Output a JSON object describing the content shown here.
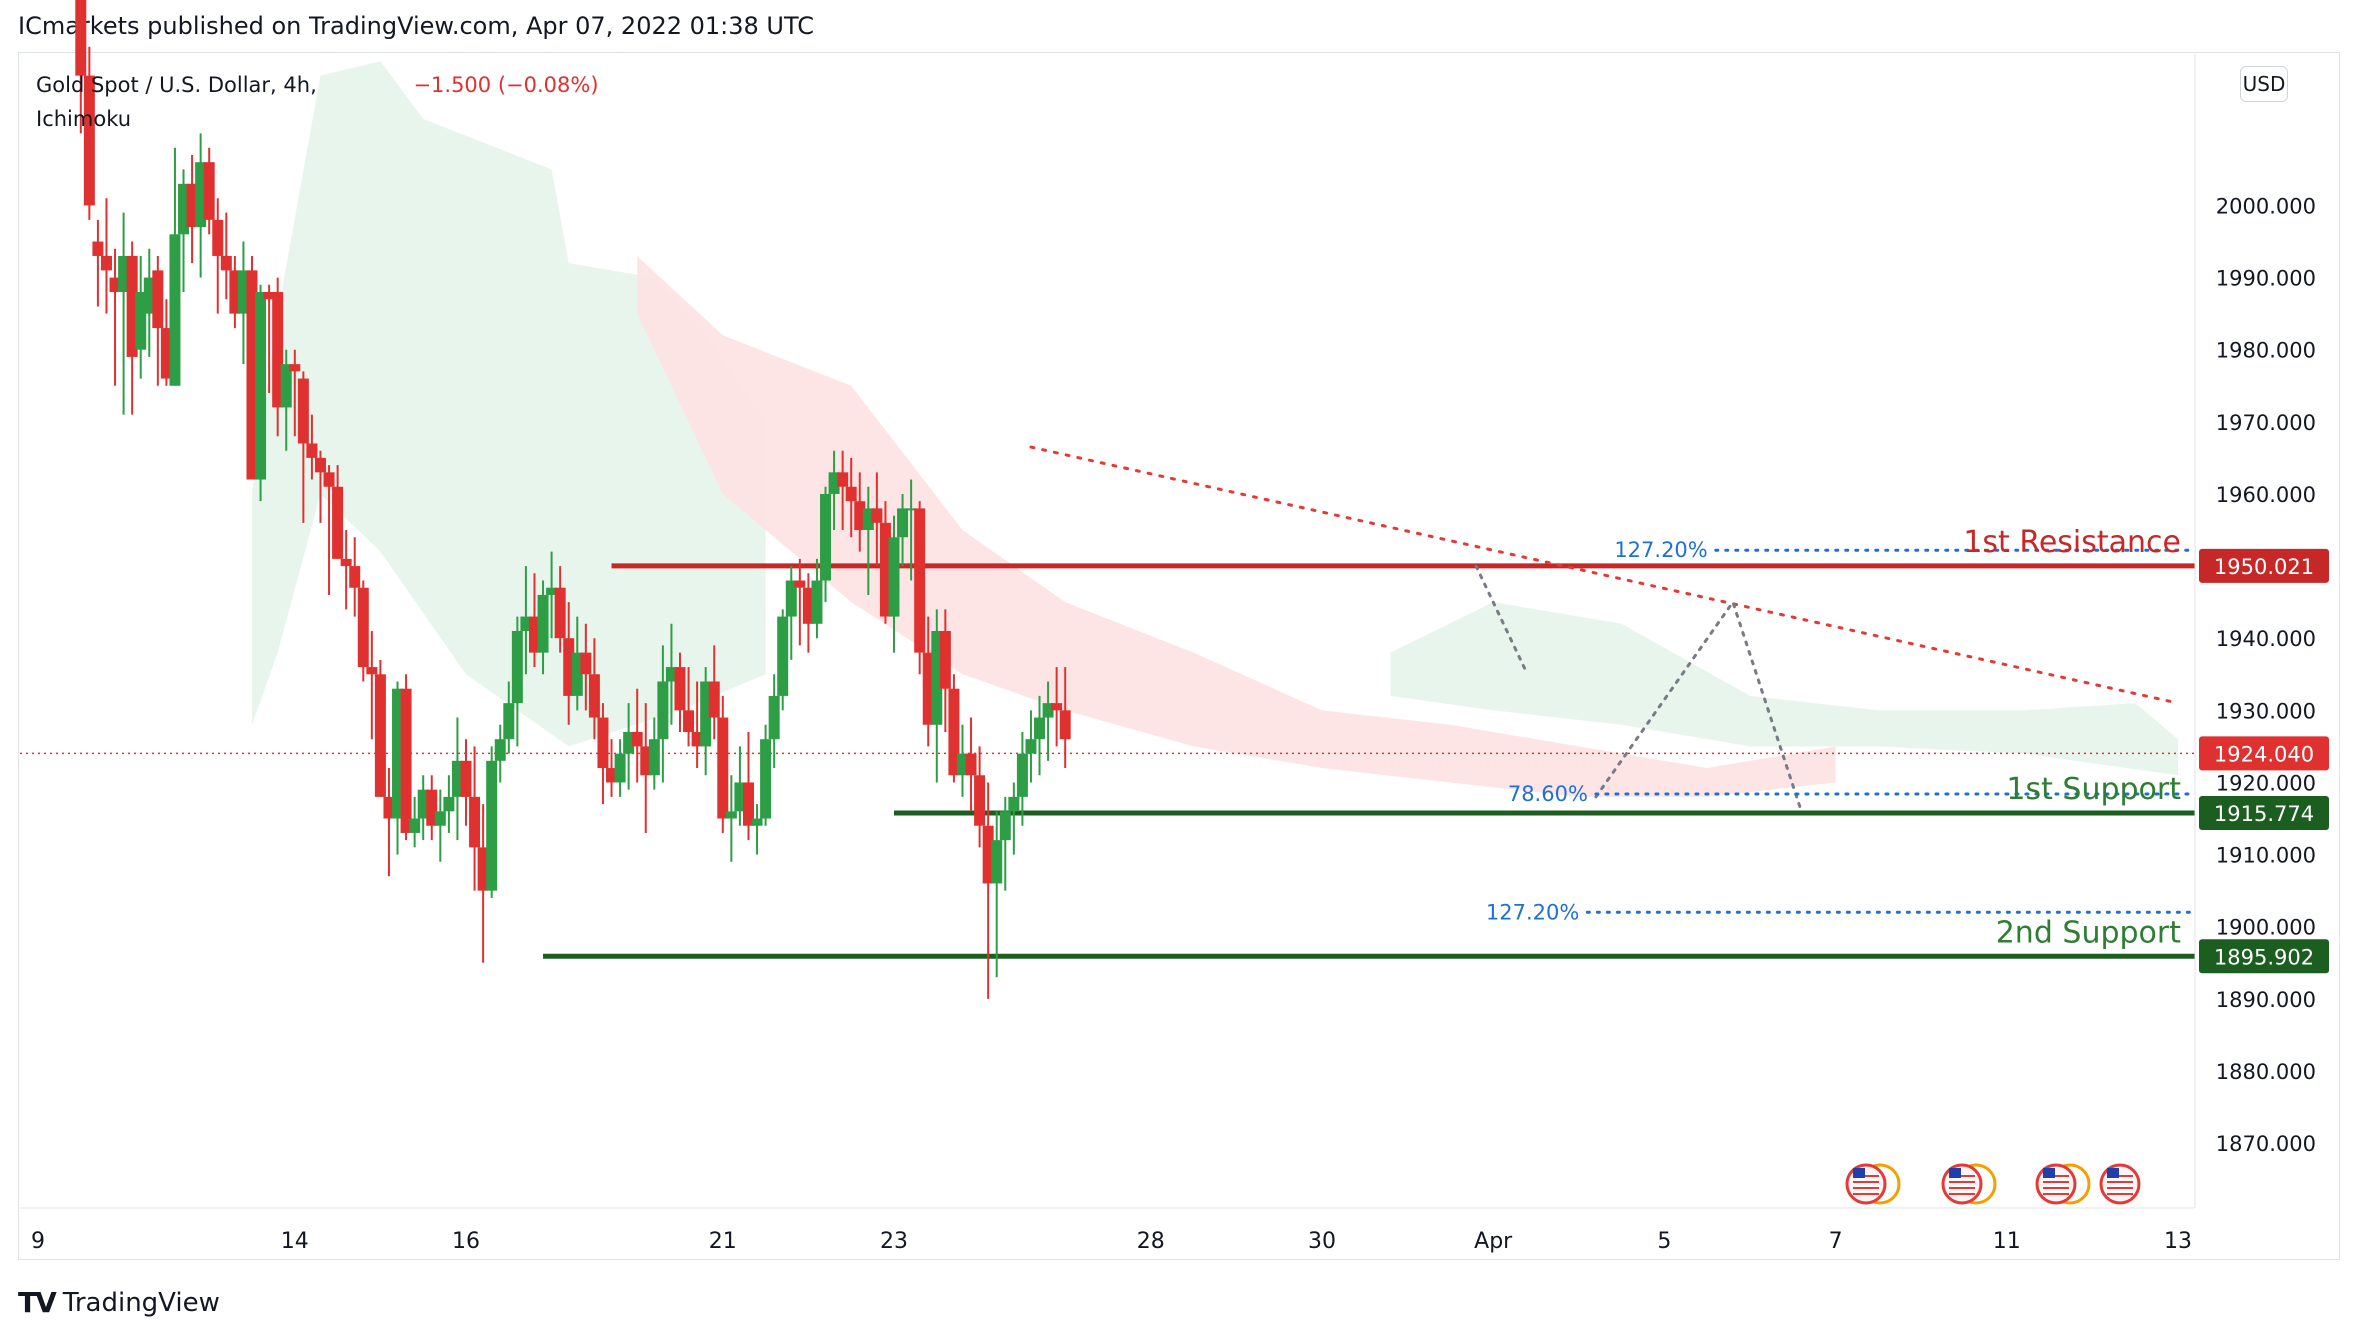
{
  "header": {
    "published": "ICmarkets published on TradingView.com, Apr 07, 2022 01:38 UTC"
  },
  "legend": {
    "symbol": "Gold Spot / U.S. Dollar, 4h,",
    "change": "−1.500 (−0.08%)",
    "indicator": "Ichimoku"
  },
  "currency_badge": "USD",
  "brand": {
    "mark": "TV",
    "name": "TradingView"
  },
  "colors": {
    "up": "#26a69a",
    "candle_up": "#2e9e46",
    "candle_down": "#e03131",
    "resistance": "#c62828",
    "support": "#1b5e20",
    "fib": "#1e6fd9",
    "cloud_bull": "#e6f4ea",
    "cloud_bear": "#fde2e2"
  },
  "chart_data": {
    "type": "candlestick",
    "ylim": [
      1861,
      2021
    ],
    "y_ticks": [
      "2000.000",
      "1990.000",
      "1980.000",
      "1970.000",
      "1960.000",
      "1950.000",
      "1940.000",
      "1930.000",
      "1920.000",
      "1910.000",
      "1900.000",
      "1890.000",
      "1880.000",
      "1870.000"
    ],
    "x_ticks": [
      {
        "label": "9",
        "x": 0
      },
      {
        "label": "14",
        "x": 30
      },
      {
        "label": "16",
        "x": 50
      },
      {
        "label": "21",
        "x": 80
      },
      {
        "label": "23",
        "x": 100
      },
      {
        "label": "28",
        "x": 130
      },
      {
        "label": "30",
        "x": 150
      },
      {
        "label": "Apr",
        "x": 170
      },
      {
        "label": "5",
        "x": 190
      },
      {
        "label": "7",
        "x": 210
      },
      {
        "label": "11",
        "x": 230
      },
      {
        "label": "13",
        "x": 250
      }
    ],
    "last_price": 1924.04,
    "price_labels": [
      {
        "text": "1950.021",
        "value": 1950.021,
        "color": "#c62828"
      },
      {
        "text": "1924.040",
        "value": 1924.04,
        "color": "#e03131"
      },
      {
        "text": "1915.774",
        "value": 1915.774,
        "color": "#1b5e20"
      },
      {
        "text": "1895.902",
        "value": 1895.902,
        "color": "#1b5e20"
      }
    ],
    "levels": [
      {
        "name": "1st Resistance",
        "value": 1950.021,
        "from": 67,
        "to": 250,
        "color": "#c62828"
      },
      {
        "name": "1st Support",
        "value": 1915.774,
        "from": 100,
        "to": 250,
        "color": "#1b5e20"
      },
      {
        "name": "2nd Support",
        "value": 1895.902,
        "from": 59,
        "to": 250,
        "color": "#1b5e20"
      }
    ],
    "level_labels": [
      "1st Resistance",
      "1st Support",
      "2nd Support"
    ],
    "fib_lines": [
      {
        "label": "127.20%",
        "value": 1952.2,
        "from": 196,
        "to": 250
      },
      {
        "label": "78.60%",
        "value": 1918.4,
        "from": 182,
        "to": 250
      },
      {
        "label": "127.20%",
        "value": 1902.0,
        "from": 181,
        "to": 250
      }
    ],
    "trendline": {
      "x1": 116,
      "y1": 1966.5,
      "x2": 250,
      "y2": 1931
    },
    "pattern": [
      [
        182,
        1918
      ],
      [
        198,
        1945
      ],
      [
        206,
        1916
      ]
    ],
    "pattern_top": [
      [
        168,
        1950
      ],
      [
        174,
        1935
      ]
    ],
    "candles": [
      [
        5,
        2030,
        2034,
        2010,
        2018
      ],
      [
        6,
        2018,
        2022,
        1998,
        2000
      ],
      [
        7,
        1995,
        1998,
        1986,
        1993
      ],
      [
        8,
        1993,
        2001,
        1985,
        1991
      ],
      [
        9,
        1990,
        1994,
        1975,
        1988
      ],
      [
        10,
        1988,
        1999,
        1971,
        1993
      ],
      [
        11,
        1993,
        1995,
        1971,
        1979
      ],
      [
        12,
        1980,
        1993,
        1976,
        1988
      ],
      [
        13,
        1985,
        1994,
        1979,
        1990
      ],
      [
        14,
        1991,
        1993,
        1975,
        1983
      ],
      [
        15,
        1983,
        1987,
        1975,
        1976
      ],
      [
        16,
        1975,
        2008,
        1975,
        1996
      ],
      [
        17,
        1996,
        2005,
        1988,
        2003
      ],
      [
        18,
        2003,
        2007,
        1992,
        1997
      ],
      [
        19,
        1997,
        2010,
        1990,
        2006
      ],
      [
        20,
        2006,
        2008,
        1996,
        1998
      ],
      [
        21,
        1998,
        2001,
        1985,
        1993
      ],
      [
        22,
        1993,
        1999,
        1987,
        1991
      ],
      [
        23,
        1991,
        1993,
        1983,
        1985
      ],
      [
        24,
        1985,
        1995,
        1978,
        1991
      ],
      [
        25,
        1991,
        1993,
        1962,
        1962
      ],
      [
        26,
        1962,
        1989,
        1959,
        1988
      ],
      [
        27,
        1988,
        1989,
        1974,
        1987
      ],
      [
        28,
        1988,
        1990,
        1968,
        1972
      ],
      [
        29,
        1972,
        1980,
        1966,
        1978
      ],
      [
        30,
        1978,
        1980,
        1968,
        1977
      ],
      [
        31,
        1976,
        1977,
        1956,
        1967
      ],
      [
        32,
        1967,
        1971,
        1962,
        1965
      ],
      [
        33,
        1965,
        1966,
        1956,
        1963
      ],
      [
        34,
        1963,
        1964,
        1946,
        1961
      ],
      [
        35,
        1961,
        1964,
        1951,
        1951
      ],
      [
        36,
        1951,
        1955,
        1944,
        1950
      ],
      [
        37,
        1950,
        1954,
        1943,
        1947
      ],
      [
        38,
        1947,
        1948,
        1934,
        1936
      ],
      [
        39,
        1936,
        1941,
        1926,
        1935
      ],
      [
        40,
        1935,
        1937,
        1918,
        1918
      ],
      [
        41,
        1918,
        1922,
        1907,
        1915
      ],
      [
        42,
        1915,
        1934,
        1910,
        1933
      ],
      [
        43,
        1933,
        1935,
        1912,
        1913
      ],
      [
        44,
        1913,
        1918,
        1911,
        1915
      ],
      [
        45,
        1915,
        1921,
        1912,
        1919
      ],
      [
        46,
        1919,
        1921,
        1912,
        1914
      ],
      [
        47,
        1914,
        1919,
        1909,
        1916
      ],
      [
        48,
        1916,
        1921,
        1913,
        1918
      ],
      [
        49,
        1918,
        1929,
        1912,
        1923
      ],
      [
        50,
        1923,
        1926,
        1914,
        1918
      ],
      [
        51,
        1918,
        1925,
        1905,
        1911
      ],
      [
        52,
        1911,
        1917,
        1895,
        1905
      ],
      [
        53,
        1905,
        1925,
        1904,
        1923
      ],
      [
        54,
        1923,
        1928,
        1920,
        1926
      ],
      [
        55,
        1926,
        1934,
        1924,
        1931
      ],
      [
        56,
        1931,
        1943,
        1925,
        1941
      ],
      [
        57,
        1941,
        1950,
        1935,
        1943
      ],
      [
        58,
        1943,
        1949,
        1936,
        1938
      ],
      [
        59,
        1938,
        1948,
        1935,
        1946
      ],
      [
        60,
        1946,
        1952,
        1940,
        1947
      ],
      [
        61,
        1947,
        1950,
        1938,
        1940
      ],
      [
        62,
        1940,
        1945,
        1928,
        1932
      ],
      [
        63,
        1932,
        1943,
        1930,
        1938
      ],
      [
        64,
        1938,
        1942,
        1930,
        1935
      ],
      [
        65,
        1935,
        1940,
        1926,
        1929
      ],
      [
        66,
        1929,
        1931,
        1917,
        1922
      ],
      [
        67,
        1922,
        1926,
        1918,
        1920
      ],
      [
        68,
        1920,
        1926,
        1918,
        1924
      ],
      [
        69,
        1924,
        1931,
        1919,
        1927
      ],
      [
        70,
        1927,
        1933,
        1920,
        1925
      ],
      [
        71,
        1925,
        1931,
        1913,
        1921
      ],
      [
        72,
        1921,
        1929,
        1919,
        1926
      ],
      [
        73,
        1926,
        1939,
        1920,
        1934
      ],
      [
        74,
        1934,
        1942,
        1928,
        1936
      ],
      [
        75,
        1936,
        1938,
        1927,
        1930
      ],
      [
        76,
        1930,
        1936,
        1925,
        1927
      ],
      [
        77,
        1927,
        1934,
        1922,
        1925
      ],
      [
        78,
        1925,
        1936,
        1921,
        1934
      ],
      [
        79,
        1934,
        1939,
        1926,
        1929
      ],
      [
        80,
        1929,
        1932,
        1913,
        1915
      ],
      [
        81,
        1915,
        1921,
        1909,
        1916
      ],
      [
        82,
        1916,
        1925,
        1914,
        1920
      ],
      [
        83,
        1920,
        1927,
        1912,
        1914
      ],
      [
        84,
        1914,
        1917,
        1910,
        1915
      ],
      [
        85,
        1915,
        1928,
        1914,
        1926
      ],
      [
        86,
        1926,
        1935,
        1922,
        1932
      ],
      [
        87,
        1932,
        1944,
        1930,
        1943
      ],
      [
        88,
        1943,
        1950,
        1937,
        1948
      ],
      [
        89,
        1948,
        1951,
        1939,
        1947
      ],
      [
        90,
        1947,
        1949,
        1938,
        1942
      ],
      [
        91,
        1942,
        1951,
        1940,
        1948
      ],
      [
        92,
        1948,
        1961,
        1945,
        1960
      ],
      [
        93,
        1960,
        1966,
        1955,
        1963
      ],
      [
        94,
        1963,
        1966,
        1955,
        1961
      ],
      [
        95,
        1961,
        1965,
        1954,
        1959
      ],
      [
        96,
        1959,
        1963,
        1952,
        1955
      ],
      [
        97,
        1955,
        1961,
        1946,
        1958
      ],
      [
        98,
        1958,
        1963,
        1950,
        1956
      ],
      [
        99,
        1956,
        1959,
        1942,
        1943
      ],
      [
        100,
        1943,
        1957,
        1938,
        1954
      ],
      [
        101,
        1954,
        1960,
        1950,
        1958
      ],
      [
        102,
        1958,
        1962,
        1948,
        1958
      ],
      [
        103,
        1958,
        1959,
        1935,
        1938
      ],
      [
        104,
        1938,
        1943,
        1925,
        1928
      ],
      [
        105,
        1928,
        1944,
        1920,
        1941
      ],
      [
        106,
        1941,
        1944,
        1927,
        1933
      ],
      [
        107,
        1933,
        1935,
        1920,
        1921
      ],
      [
        108,
        1921,
        1928,
        1918,
        1924
      ],
      [
        109,
        1924,
        1929,
        1916,
        1921
      ],
      [
        110,
        1921,
        1925,
        1911,
        1914
      ],
      [
        111,
        1914,
        1920,
        1890,
        1906
      ],
      [
        112,
        1906,
        1916,
        1893,
        1912
      ],
      [
        113,
        1912,
        1918,
        1905,
        1916
      ],
      [
        114,
        1916,
        1920,
        1910,
        1918
      ],
      [
        115,
        1918,
        1927,
        1914,
        1924
      ],
      [
        116,
        1924,
        1930,
        1920,
        1926
      ],
      [
        117,
        1926,
        1932,
        1921,
        1929
      ],
      [
        118,
        1929,
        1934,
        1923,
        1931
      ],
      [
        119,
        1931,
        1936,
        1925,
        1930
      ],
      [
        120,
        1930,
        1936,
        1922,
        1926
      ]
    ]
  }
}
